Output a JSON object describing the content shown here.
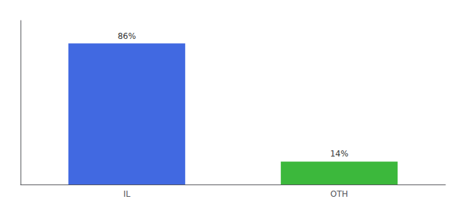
{
  "chart_data": {
    "type": "bar",
    "categories": [
      "IL",
      "OTH"
    ],
    "values": [
      86,
      14
    ],
    "value_labels": [
      "86%",
      "14%"
    ],
    "data_labels": true,
    "colors": [
      "#4169e1",
      "#3cb83c"
    ],
    "ylim": [
      0,
      100
    ],
    "yticks": [],
    "tick_labels": "x",
    "grid": false
  }
}
